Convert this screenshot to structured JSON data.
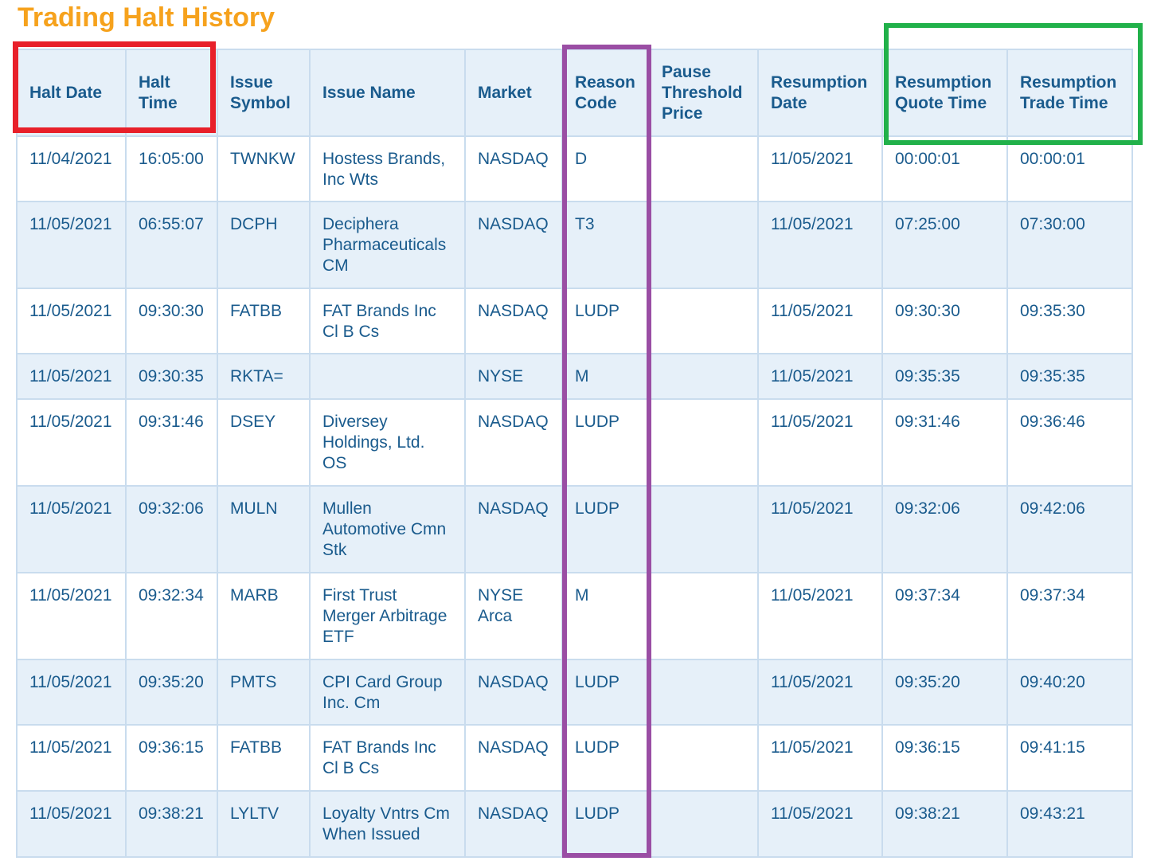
{
  "page": {
    "title": "Trading Halt History"
  },
  "colors": {
    "title": "#f6a21d",
    "text": "#1a5b8d",
    "row_alt": "#e6f0f9",
    "border": "#c9dcee",
    "highlight_red": "#e8202a",
    "highlight_purple": "#9a4ea4",
    "highlight_green": "#21b14a"
  },
  "table": {
    "headers": [
      "Halt Date",
      "Halt Time",
      "Issue Symbol",
      "Issue Name",
      "Market",
      "Reason Code",
      "Pause Threshold Price",
      "Resumption Date",
      "Resumption Quote Time",
      "Resumption Trade Time"
    ],
    "rows": [
      [
        "11/04/2021",
        "16:05:00",
        "TWNKW",
        "Hostess Brands, Inc Wts",
        "NASDAQ",
        "D",
        "",
        "11/05/2021",
        "00:00:01",
        "00:00:01"
      ],
      [
        "11/05/2021",
        "06:55:07",
        "DCPH",
        "Deciphera Pharmaceuticals CM",
        "NASDAQ",
        "T3",
        "",
        "11/05/2021",
        "07:25:00",
        "07:30:00"
      ],
      [
        "11/05/2021",
        "09:30:30",
        "FATBB",
        "FAT Brands Inc Cl B Cs",
        "NASDAQ",
        "LUDP",
        "",
        "11/05/2021",
        "09:30:30",
        "09:35:30"
      ],
      [
        "11/05/2021",
        "09:30:35",
        "RKTA=",
        "",
        "NYSE",
        "M",
        "",
        "11/05/2021",
        "09:35:35",
        "09:35:35"
      ],
      [
        "11/05/2021",
        "09:31:46",
        "DSEY",
        "Diversey Holdings, Ltd. OS",
        "NASDAQ",
        "LUDP",
        "",
        "11/05/2021",
        "09:31:46",
        "09:36:46"
      ],
      [
        "11/05/2021",
        "09:32:06",
        "MULN",
        "Mullen Automotive Cmn Stk",
        "NASDAQ",
        "LUDP",
        "",
        "11/05/2021",
        "09:32:06",
        "09:42:06"
      ],
      [
        "11/05/2021",
        "09:32:34",
        "MARB",
        "First Trust Merger Arbitrage ETF",
        "NYSE Arca",
        "M",
        "",
        "11/05/2021",
        "09:37:34",
        "09:37:34"
      ],
      [
        "11/05/2021",
        "09:35:20",
        "PMTS",
        "CPI Card Group Inc. Cm",
        "NASDAQ",
        "LUDP",
        "",
        "11/05/2021",
        "09:35:20",
        "09:40:20"
      ],
      [
        "11/05/2021",
        "09:36:15",
        "FATBB",
        "FAT Brands Inc Cl B Cs",
        "NASDAQ",
        "LUDP",
        "",
        "11/05/2021",
        "09:36:15",
        "09:41:15"
      ],
      [
        "11/05/2021",
        "09:38:21",
        "LYLTV",
        "Loyalty Vntrs Cm When Issued",
        "NASDAQ",
        "LUDP",
        "",
        "11/05/2021",
        "09:38:21",
        "09:43:21"
      ]
    ]
  }
}
